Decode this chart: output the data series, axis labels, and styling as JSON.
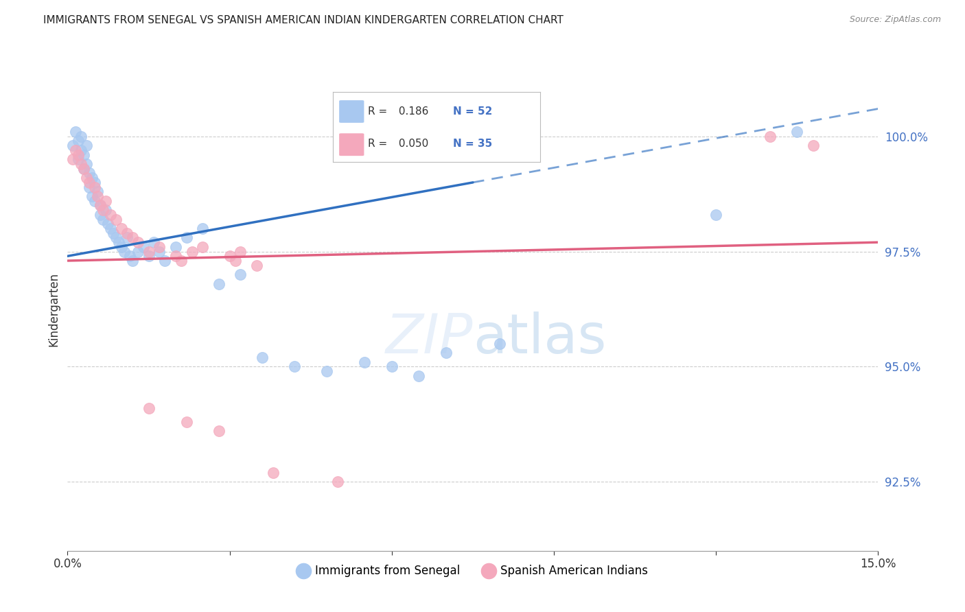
{
  "title": "IMMIGRANTS FROM SENEGAL VS SPANISH AMERICAN INDIAN KINDERGARTEN CORRELATION CHART",
  "source": "Source: ZipAtlas.com",
  "ylabel": "Kindergarten",
  "ytick_values": [
    92.5,
    95.0,
    97.5,
    100.0
  ],
  "xlim": [
    0.0,
    15.0
  ],
  "ylim": [
    91.0,
    101.5
  ],
  "blue_R": 0.186,
  "blue_N": 52,
  "pink_R": 0.05,
  "pink_N": 35,
  "blue_color": "#A8C8F0",
  "pink_color": "#F4A8BC",
  "trendline_blue": "#3070C0",
  "trendline_pink": "#E06080",
  "background": "#ffffff",
  "legend_label_blue": "Immigrants from Senegal",
  "legend_label_pink": "Spanish American Indians",
  "blue_scatter_x": [
    0.1,
    0.15,
    0.2,
    0.2,
    0.25,
    0.25,
    0.3,
    0.3,
    0.35,
    0.35,
    0.4,
    0.4,
    0.45,
    0.45,
    0.5,
    0.5,
    0.55,
    0.6,
    0.6,
    0.65,
    0.7,
    0.75,
    0.8,
    0.85,
    0.9,
    0.95,
    1.0,
    1.05,
    1.1,
    1.15,
    1.2,
    1.3,
    1.4,
    1.5,
    1.6,
    1.7,
    1.8,
    2.0,
    2.2,
    2.5,
    2.8,
    3.2,
    3.6,
    4.2,
    4.8,
    5.5,
    6.0,
    6.5,
    7.0,
    8.0,
    12.0,
    13.5
  ],
  "blue_scatter_y": [
    99.8,
    100.1,
    99.9,
    99.5,
    100.0,
    99.7,
    99.6,
    99.3,
    99.8,
    99.4,
    99.2,
    98.9,
    99.1,
    98.7,
    99.0,
    98.6,
    98.8,
    98.5,
    98.3,
    98.2,
    98.4,
    98.1,
    98.0,
    97.9,
    97.8,
    97.7,
    97.6,
    97.5,
    97.8,
    97.4,
    97.3,
    97.5,
    97.6,
    97.4,
    97.7,
    97.5,
    97.3,
    97.6,
    97.8,
    98.0,
    96.8,
    97.0,
    95.2,
    95.0,
    94.9,
    95.1,
    95.0,
    94.8,
    95.3,
    95.5,
    98.3,
    100.1
  ],
  "pink_scatter_x": [
    0.1,
    0.15,
    0.2,
    0.25,
    0.3,
    0.35,
    0.4,
    0.5,
    0.55,
    0.6,
    0.65,
    0.7,
    0.8,
    0.9,
    1.0,
    1.1,
    1.2,
    1.3,
    1.5,
    1.7,
    2.0,
    2.1,
    2.3,
    2.5,
    3.0,
    3.1,
    3.2,
    3.5,
    1.5,
    2.2,
    2.8,
    3.8,
    5.0,
    13.0,
    13.8
  ],
  "pink_scatter_y": [
    99.5,
    99.7,
    99.6,
    99.4,
    99.3,
    99.1,
    99.0,
    98.9,
    98.7,
    98.5,
    98.4,
    98.6,
    98.3,
    98.2,
    98.0,
    97.9,
    97.8,
    97.7,
    97.5,
    97.6,
    97.4,
    97.3,
    97.5,
    97.6,
    97.4,
    97.3,
    97.5,
    97.2,
    94.1,
    93.8,
    93.6,
    92.7,
    92.5,
    100.0,
    99.8
  ],
  "blue_trend_x0": 0.0,
  "blue_trend_y0": 97.4,
  "blue_trend_x1": 7.5,
  "blue_trend_y1": 99.0,
  "blue_dash_x0": 7.5,
  "blue_dash_y0": 99.0,
  "blue_dash_x1": 15.0,
  "blue_dash_y1": 100.6,
  "pink_trend_x0": 0.0,
  "pink_trend_y0": 97.3,
  "pink_trend_x1": 15.0,
  "pink_trend_y1": 97.7
}
